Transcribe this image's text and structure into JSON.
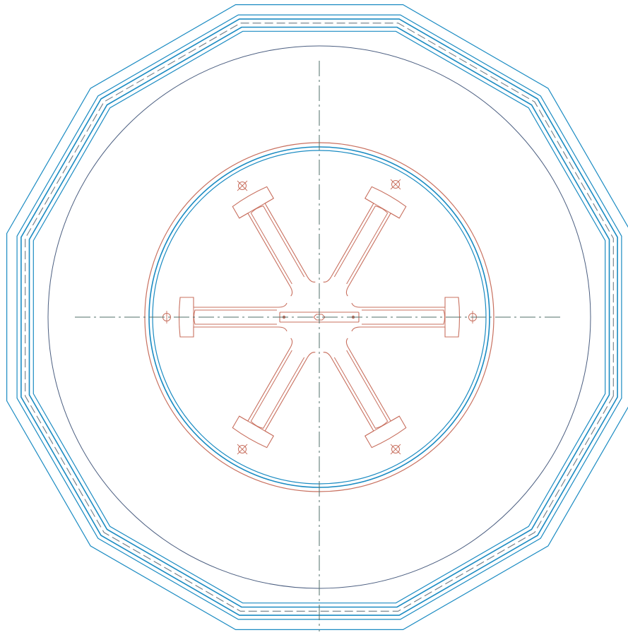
{
  "drawing": {
    "kind": "technical-plan-view",
    "colors": {
      "background": "#ffffff",
      "outline_blue": "#1b8bc2",
      "center_dash": "#6f7c86",
      "slate_circle": "#4b5e80",
      "red_part": "#c8705f",
      "axis": "#4f6f6a"
    },
    "parts": {
      "outer_shell": {
        "shape": "regular-12-gon",
        "outline_count": 5,
        "dashed_centerline": true
      },
      "inner_circle": {
        "shape": "circle"
      },
      "center_housing": {
        "shape": "circle",
        "red_rings": 1,
        "blue_rings": 2
      },
      "spider": {
        "arms": 6,
        "arm_angles_deg": [
          0,
          60,
          120,
          180,
          240,
          300
        ]
      },
      "mounting_holes": {
        "count": 6,
        "symbol": "crossed-circle"
      },
      "center_slot": {
        "shape": "rounded-rectangle",
        "pins": 2
      }
    },
    "center_lines": {
      "style": "dash-dot",
      "count": 2
    }
  }
}
